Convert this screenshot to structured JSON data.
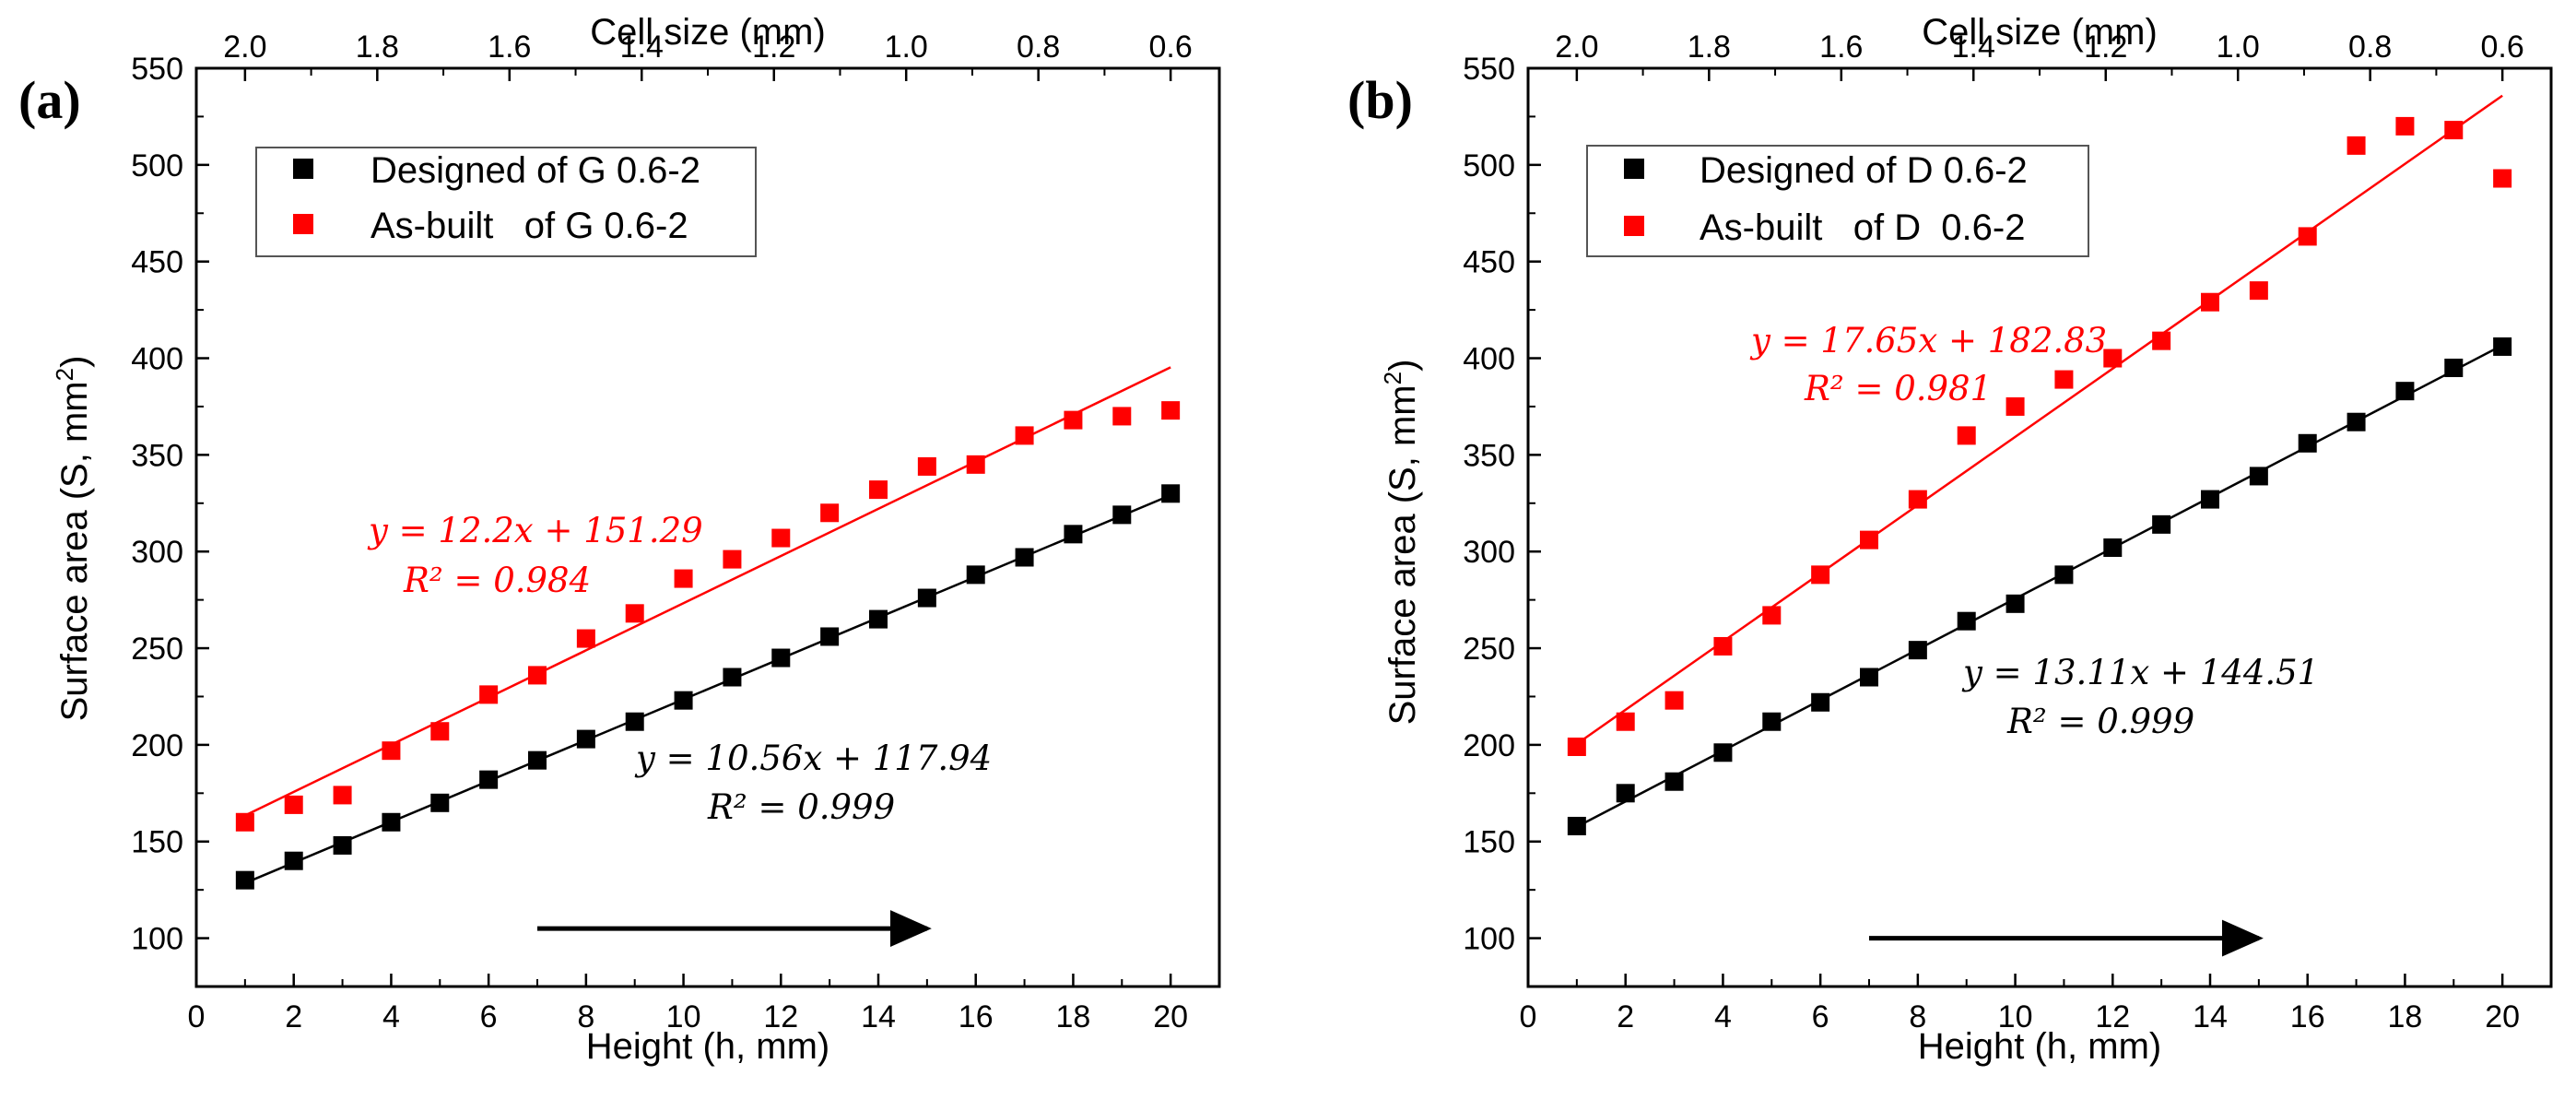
{
  "chart_data": [
    {
      "type": "scatter",
      "panel_label": "(a)",
      "xlabel": "Height (h, mm)",
      "ylabel": "Surface area (S, mm²)",
      "top_xlabel": "Cell size (mm)",
      "xlim": [
        0,
        21
      ],
      "ylim": [
        75,
        550
      ],
      "x_ticks": [
        0,
        2,
        4,
        6,
        8,
        10,
        12,
        14,
        16,
        18,
        20
      ],
      "y_ticks": [
        100,
        150,
        200,
        250,
        300,
        350,
        400,
        450,
        500,
        550
      ],
      "top_ticks": [
        "2.0",
        "1.8",
        "1.6",
        "1.4",
        "1.2",
        "1.0",
        "0.8",
        "0.6"
      ],
      "top_range": [
        2.0,
        0.6
      ],
      "series": [
        {
          "name": "Designed of G 0.6-2",
          "color": "#000000",
          "x": [
            1,
            2,
            3,
            4,
            5,
            6,
            7,
            8,
            9,
            10,
            11,
            12,
            13,
            14,
            15,
            16,
            17,
            18,
            19,
            20
          ],
          "y": [
            130,
            140,
            148,
            160,
            170,
            182,
            192,
            203,
            212,
            223,
            235,
            245,
            256,
            265,
            276,
            288,
            297,
            309,
            319,
            330
          ],
          "fit": {
            "slope": 10.56,
            "intercept": 117.94,
            "x_range": [
              1,
              20
            ]
          },
          "equation": "y = 10.56x + 117.94",
          "r2": "R² = 0.999"
        },
        {
          "name": "As-built   of G 0.6-2",
          "color": "#ff0000",
          "x": [
            1,
            2,
            3,
            4,
            5,
            6,
            7,
            8,
            9,
            10,
            11,
            12,
            13,
            14,
            15,
            16,
            17,
            18,
            19,
            20
          ],
          "y": [
            160,
            169,
            174,
            197,
            207,
            226,
            236,
            255,
            268,
            286,
            296,
            307,
            320,
            332,
            344,
            345,
            360,
            368,
            370,
            373
          ],
          "fit": {
            "slope": 12.2,
            "intercept": 151.29,
            "x_range": [
              1,
              20
            ]
          },
          "equation": "y = 12.2x + 151.29",
          "r2": "R² = 0.984"
        }
      ],
      "arrow": {
        "from": 7,
        "to": 15,
        "y": 105
      }
    },
    {
      "type": "scatter",
      "panel_label": "(b)",
      "xlabel": "Height (h, mm)",
      "ylabel": "Surface area (S, mm²)",
      "top_xlabel": "Cell size (mm)",
      "xlim": [
        0,
        21
      ],
      "ylim": [
        75,
        550
      ],
      "x_ticks": [
        0,
        2,
        4,
        6,
        8,
        10,
        12,
        14,
        16,
        18,
        20
      ],
      "y_ticks": [
        100,
        150,
        200,
        250,
        300,
        350,
        400,
        450,
        500,
        550
      ],
      "top_ticks": [
        "2.0",
        "1.8",
        "1.6",
        "1.4",
        "1.2",
        "1.0",
        "0.8",
        "0.6"
      ],
      "top_range": [
        2.0,
        0.6
      ],
      "series": [
        {
          "name": "Designed of D 0.6-2",
          "color": "#000000",
          "x": [
            1,
            2,
            3,
            4,
            5,
            6,
            7,
            8,
            9,
            10,
            11,
            12,
            13,
            14,
            15,
            16,
            17,
            18,
            19,
            20
          ],
          "y": [
            158,
            175,
            181,
            196,
            212,
            222,
            235,
            249,
            264,
            273,
            288,
            302,
            314,
            327,
            339,
            356,
            367,
            383,
            395,
            406
          ],
          "fit": {
            "slope": 13.11,
            "intercept": 144.51,
            "x_range": [
              1,
              20
            ]
          },
          "equation": "y = 13.11x + 144.51",
          "r2": "R² = 0.999"
        },
        {
          "name": "As-built   of D  0.6-2",
          "color": "#ff0000",
          "x": [
            1,
            2,
            3,
            4,
            5,
            6,
            7,
            8,
            9,
            10,
            11,
            12,
            13,
            14,
            15,
            16,
            17,
            18,
            19,
            20
          ],
          "y": [
            199,
            212,
            223,
            251,
            267,
            288,
            306,
            327,
            360,
            375,
            389,
            400,
            409,
            429,
            435,
            463,
            510,
            520,
            518,
            493
          ],
          "fit": {
            "slope": 17.65,
            "intercept": 182.83,
            "x_range": [
              1,
              20
            ]
          },
          "equation": "y = 17.65x + 182.83",
          "r2": "R² = 0.981"
        }
      ],
      "arrow": {
        "from": 7,
        "to": 15,
        "y": 100
      }
    }
  ]
}
